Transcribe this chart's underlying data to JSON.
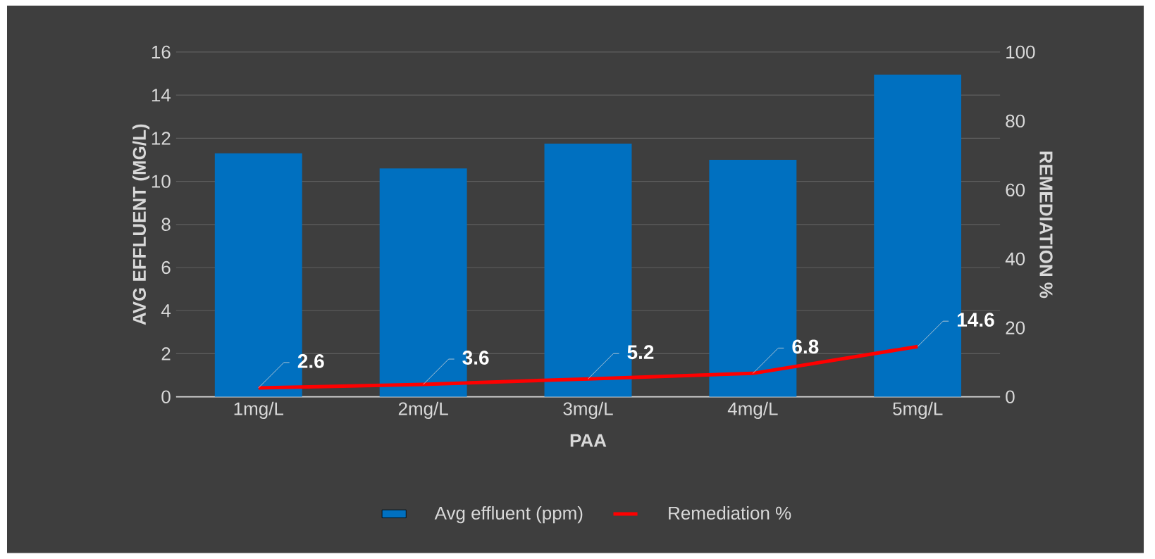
{
  "chart_data": {
    "type": "bar",
    "xlabel": "PAA",
    "ylabel": "AVG EFFLUENT (MG/L)",
    "y2label": "REMEDIATION %",
    "categories": [
      "1mg/L",
      "2mg/L",
      "3mg/L",
      "4mg/L",
      "5mg/L"
    ],
    "series": [
      {
        "name": "Avg effluent (ppm)",
        "color": "#0070c0",
        "values": [
          11.3,
          10.6,
          11.75,
          11.0,
          14.95
        ]
      },
      {
        "name": "Remediation %",
        "type": "line",
        "axis": "y2",
        "color": "#ff0000",
        "values": [
          2.6,
          3.6,
          5.2,
          6.8,
          14.6
        ],
        "value_labels": [
          "2.6",
          "3.6",
          "5.2",
          "6.8",
          "14.6"
        ]
      }
    ],
    "ylim": [
      0,
      16
    ],
    "yticks": [
      0,
      2,
      4,
      6,
      8,
      10,
      12,
      14,
      16
    ],
    "y2lim": [
      0,
      100
    ],
    "y2ticks": [
      0,
      20,
      40,
      60,
      80,
      100
    ],
    "grid": "y",
    "legend": "bottom"
  }
}
